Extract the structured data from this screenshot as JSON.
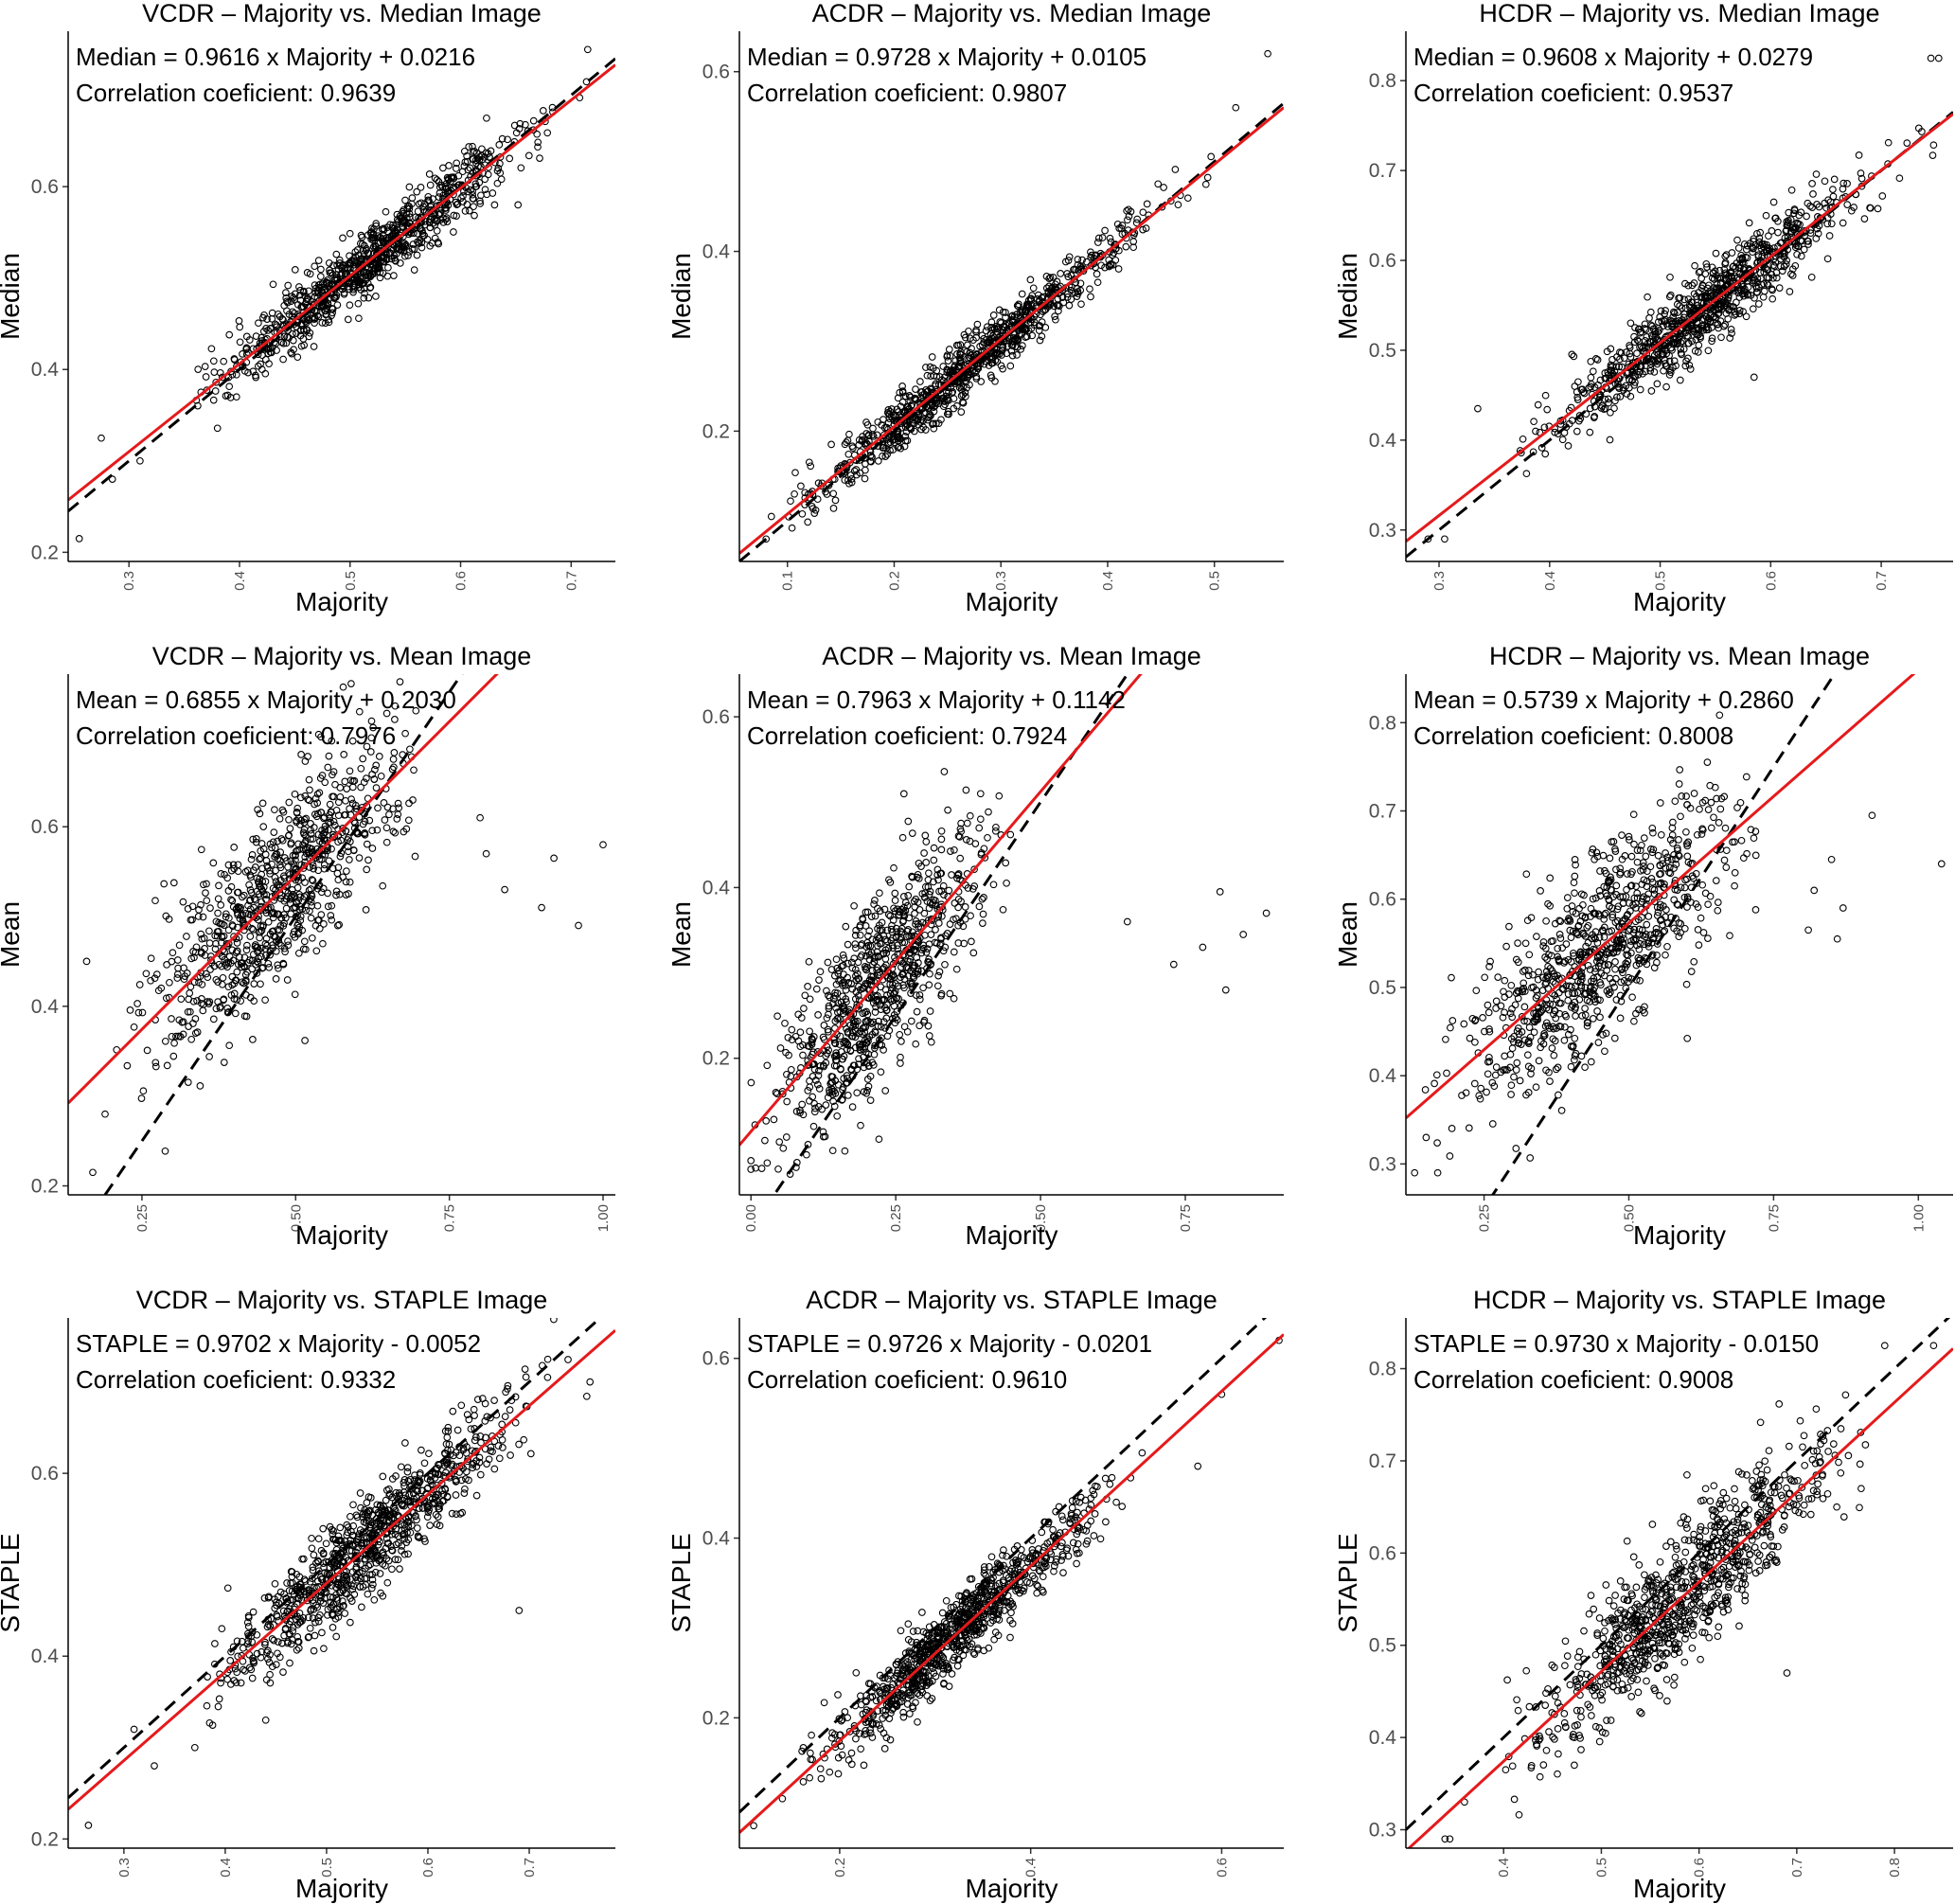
{
  "colors": {
    "points": "#000000",
    "fit_line": "#e41a1c",
    "identity_line": "#000000",
    "tick_text": "#4d4d4d"
  },
  "chart_data": [
    {
      "type": "scatter",
      "title": "VCDR – Majority vs. Median Image",
      "xlabel": "Majority",
      "ylabel": "Median",
      "xlim": [
        0.245,
        0.74
      ],
      "ylim": [
        0.19,
        0.77
      ],
      "xticks": [
        0.3,
        0.4,
        0.5,
        0.6,
        0.7
      ],
      "yticks": [
        0.2,
        0.4,
        0.6
      ],
      "equation": "Median = 0.9616 x Majority + 0.0216",
      "correlation": "Correlation coeficient: 0.9639",
      "fit": {
        "slope": 0.9616,
        "intercept": 0.0216,
        "r": 0.9639
      },
      "cloud": {
        "n": 900,
        "center": 0.52,
        "spread": 0.07,
        "xmin": 0.36,
        "xmax": 0.72
      },
      "outliers": [
        [
          0.255,
          0.215
        ],
        [
          0.275,
          0.325
        ],
        [
          0.285,
          0.28
        ],
        [
          0.31,
          0.3
        ],
        [
          0.715,
          0.75
        ],
        [
          0.652,
          0.58
        ]
      ]
    },
    {
      "type": "scatter",
      "title": "ACDR – Majority vs. Median Image",
      "xlabel": "Majority",
      "ylabel": "Median",
      "xlim": [
        0.055,
        0.565
      ],
      "ylim": [
        0.055,
        0.645
      ],
      "xticks": [
        0.1,
        0.2,
        0.3,
        0.4,
        0.5
      ],
      "yticks": [
        0.2,
        0.4,
        0.6
      ],
      "equation": "Median = 0.9728 x Majority + 0.0105",
      "correlation": "Correlation coeficient: 0.9807",
      "fit": {
        "slope": 0.9728,
        "intercept": 0.0105,
        "r": 0.9807
      },
      "cloud": {
        "n": 900,
        "center": 0.27,
        "spread": 0.08,
        "xmin": 0.1,
        "xmax": 0.5
      },
      "outliers": [
        [
          0.55,
          0.62
        ],
        [
          0.52,
          0.56
        ],
        [
          0.08,
          0.08
        ],
        [
          0.085,
          0.105
        ]
      ]
    },
    {
      "type": "scatter",
      "title": "HCDR – Majority vs. Median Image",
      "xlabel": "Majority",
      "ylabel": "Median",
      "xlim": [
        0.27,
        0.765
      ],
      "ylim": [
        0.265,
        0.855
      ],
      "xticks": [
        0.3,
        0.4,
        0.5,
        0.6,
        0.7
      ],
      "yticks": [
        0.3,
        0.4,
        0.5,
        0.6,
        0.7,
        0.8
      ],
      "equation": "Median = 0.9608 x Majority + 0.0279",
      "correlation": "Correlation coeficient: 0.9537",
      "fit": {
        "slope": 0.9608,
        "intercept": 0.0279,
        "r": 0.9537
      },
      "cloud": {
        "n": 900,
        "center": 0.54,
        "spread": 0.07,
        "xmin": 0.37,
        "xmax": 0.75
      },
      "outliers": [
        [
          0.29,
          0.29
        ],
        [
          0.305,
          0.29
        ],
        [
          0.335,
          0.435
        ],
        [
          0.745,
          0.825
        ],
        [
          0.752,
          0.825
        ],
        [
          0.585,
          0.47
        ]
      ]
    },
    {
      "type": "scatter",
      "title": "VCDR – Majority vs. Mean Image",
      "xlabel": "Majority",
      "ylabel": "Mean",
      "xlim": [
        0.13,
        1.02
      ],
      "ylim": [
        0.19,
        0.77
      ],
      "xticks": [
        0.25,
        0.5,
        0.75,
        1.0
      ],
      "xtick_labels": [
        "0.25",
        "0.50",
        "0.75",
        "1.00"
      ],
      "yticks": [
        0.2,
        0.4,
        0.6
      ],
      "equation": "Mean = 0.6855 x Majority + 0.2030",
      "correlation": "Correlation coeficient: 0.7976",
      "fit": {
        "slope": 0.6855,
        "intercept": 0.203,
        "r": 0.7976
      },
      "identity": true,
      "cloud": {
        "n": 850,
        "center": 0.47,
        "spread": 0.1,
        "xmin": 0.16,
        "xmax": 0.7
      },
      "outliers": [
        [
          0.8,
          0.61
        ],
        [
          0.81,
          0.57
        ],
        [
          0.84,
          0.53
        ],
        [
          0.9,
          0.51
        ],
        [
          0.92,
          0.565
        ],
        [
          0.96,
          0.49
        ],
        [
          1.0,
          0.58
        ],
        [
          0.16,
          0.45
        ],
        [
          0.17,
          0.215
        ],
        [
          0.19,
          0.28
        ]
      ]
    },
    {
      "type": "scatter",
      "title": "ACDR – Majority vs. Mean Image",
      "xlabel": "Majority",
      "ylabel": "Mean",
      "xlim": [
        -0.02,
        0.92
      ],
      "ylim": [
        0.04,
        0.65
      ],
      "xticks": [
        0.0,
        0.25,
        0.5,
        0.75
      ],
      "xtick_labels": [
        "0.00",
        "0.25",
        "0.50",
        "0.75"
      ],
      "yticks": [
        0.2,
        0.4,
        0.6
      ],
      "equation": "Mean = 0.7963 x Majority + 0.1142",
      "correlation": "Correlation coeficient: 0.7924",
      "fit": {
        "slope": 0.7963,
        "intercept": 0.1142,
        "r": 0.7924
      },
      "identity": true,
      "cloud": {
        "n": 850,
        "center": 0.22,
        "spread": 0.09,
        "xmin": 0.0,
        "xmax": 0.45
      },
      "outliers": [
        [
          0.65,
          0.36
        ],
        [
          0.73,
          0.31
        ],
        [
          0.78,
          0.33
        ],
        [
          0.81,
          0.395
        ],
        [
          0.82,
          0.28
        ],
        [
          0.85,
          0.345
        ],
        [
          0.89,
          0.37
        ],
        [
          0.0,
          0.08
        ],
        [
          0.0,
          0.07
        ]
      ]
    },
    {
      "type": "scatter",
      "title": "HCDR – Majority vs. Mean Image",
      "xlabel": "Majority",
      "ylabel": "Mean",
      "xlim": [
        0.115,
        1.06
      ],
      "ylim": [
        0.265,
        0.855
      ],
      "xticks": [
        0.25,
        0.5,
        0.75,
        1.0
      ],
      "xtick_labels": [
        "0.25",
        "0.50",
        "0.75",
        "1.00"
      ],
      "yticks": [
        0.3,
        0.4,
        0.5,
        0.6,
        0.7,
        0.8
      ],
      "equation": "Mean = 0.5739 x Majority + 0.2860",
      "correlation": "Correlation coeficient: 0.8008",
      "fit": {
        "slope": 0.5739,
        "intercept": 0.286,
        "r": 0.8008
      },
      "identity": true,
      "cloud": {
        "n": 850,
        "center": 0.45,
        "spread": 0.12,
        "xmin": 0.13,
        "xmax": 0.72
      },
      "outliers": [
        [
          0.81,
          0.565
        ],
        [
          0.82,
          0.61
        ],
        [
          0.85,
          0.645
        ],
        [
          0.86,
          0.555
        ],
        [
          0.87,
          0.59
        ],
        [
          0.92,
          0.695
        ],
        [
          1.04,
          0.64
        ],
        [
          0.13,
          0.29
        ],
        [
          0.15,
          0.33
        ],
        [
          0.17,
          0.29
        ]
      ]
    },
    {
      "type": "scatter",
      "title": "VCDR – Majority vs. STAPLE Image",
      "xlabel": "Majority",
      "ylabel": "STAPLE",
      "xlim": [
        0.245,
        0.785
      ],
      "ylim": [
        0.19,
        0.77
      ],
      "xticks": [
        0.3,
        0.4,
        0.5,
        0.6,
        0.7
      ],
      "yticks": [
        0.2,
        0.4,
        0.6
      ],
      "equation": "STAPLE = 0.9702 x Majority - 0.0052",
      "correlation": "Correlation coeficient: 0.9332",
      "fit": {
        "slope": 0.9702,
        "intercept": -0.0052,
        "r": 0.9332
      },
      "identity": true,
      "cloud": {
        "n": 900,
        "center": 0.54,
        "spread": 0.07,
        "xmin": 0.38,
        "xmax": 0.76
      },
      "outliers": [
        [
          0.265,
          0.215
        ],
        [
          0.31,
          0.32
        ],
        [
          0.33,
          0.28
        ],
        [
          0.37,
          0.3
        ],
        [
          0.44,
          0.33
        ],
        [
          0.76,
          0.7
        ],
        [
          0.69,
          0.45
        ]
      ]
    },
    {
      "type": "scatter",
      "title": "ACDR – Majority vs. STAPLE Image",
      "xlabel": "Majority",
      "ylabel": "STAPLE",
      "xlim": [
        0.095,
        0.665
      ],
      "ylim": [
        0.055,
        0.645
      ],
      "xticks": [
        0.2,
        0.4,
        0.6
      ],
      "yticks": [
        0.2,
        0.4,
        0.6
      ],
      "equation": "STAPLE = 0.9726 x Majority - 0.0201",
      "correlation": "Correlation coeficient: 0.9610",
      "fit": {
        "slope": 0.9726,
        "intercept": -0.0201,
        "r": 0.961
      },
      "identity": true,
      "cloud": {
        "n": 900,
        "center": 0.32,
        "spread": 0.07,
        "xmin": 0.16,
        "xmax": 0.56
      },
      "outliers": [
        [
          0.11,
          0.08
        ],
        [
          0.14,
          0.11
        ],
        [
          0.66,
          0.62
        ],
        [
          0.575,
          0.48
        ],
        [
          0.6,
          0.56
        ]
      ]
    },
    {
      "type": "scatter",
      "title": "HCDR – Majority vs. STAPLE Image",
      "xlabel": "Majority",
      "ylabel": "STAPLE",
      "xlim": [
        0.3,
        0.86
      ],
      "ylim": [
        0.28,
        0.855
      ],
      "xticks": [
        0.4,
        0.5,
        0.6,
        0.7,
        0.8
      ],
      "yticks": [
        0.3,
        0.4,
        0.5,
        0.6,
        0.7,
        0.8
      ],
      "equation": "STAPLE = 0.9730 x Majority - 0.0150",
      "correlation": "Correlation coeficient: 0.9008",
      "fit": {
        "slope": 0.973,
        "intercept": -0.015,
        "r": 0.9008
      },
      "identity": true,
      "cloud": {
        "n": 900,
        "center": 0.58,
        "spread": 0.075,
        "xmin": 0.4,
        "xmax": 0.78
      },
      "outliers": [
        [
          0.34,
          0.29
        ],
        [
          0.345,
          0.29
        ],
        [
          0.36,
          0.33
        ],
        [
          0.79,
          0.825
        ],
        [
          0.84,
          0.825
        ],
        [
          0.69,
          0.47
        ]
      ]
    }
  ]
}
